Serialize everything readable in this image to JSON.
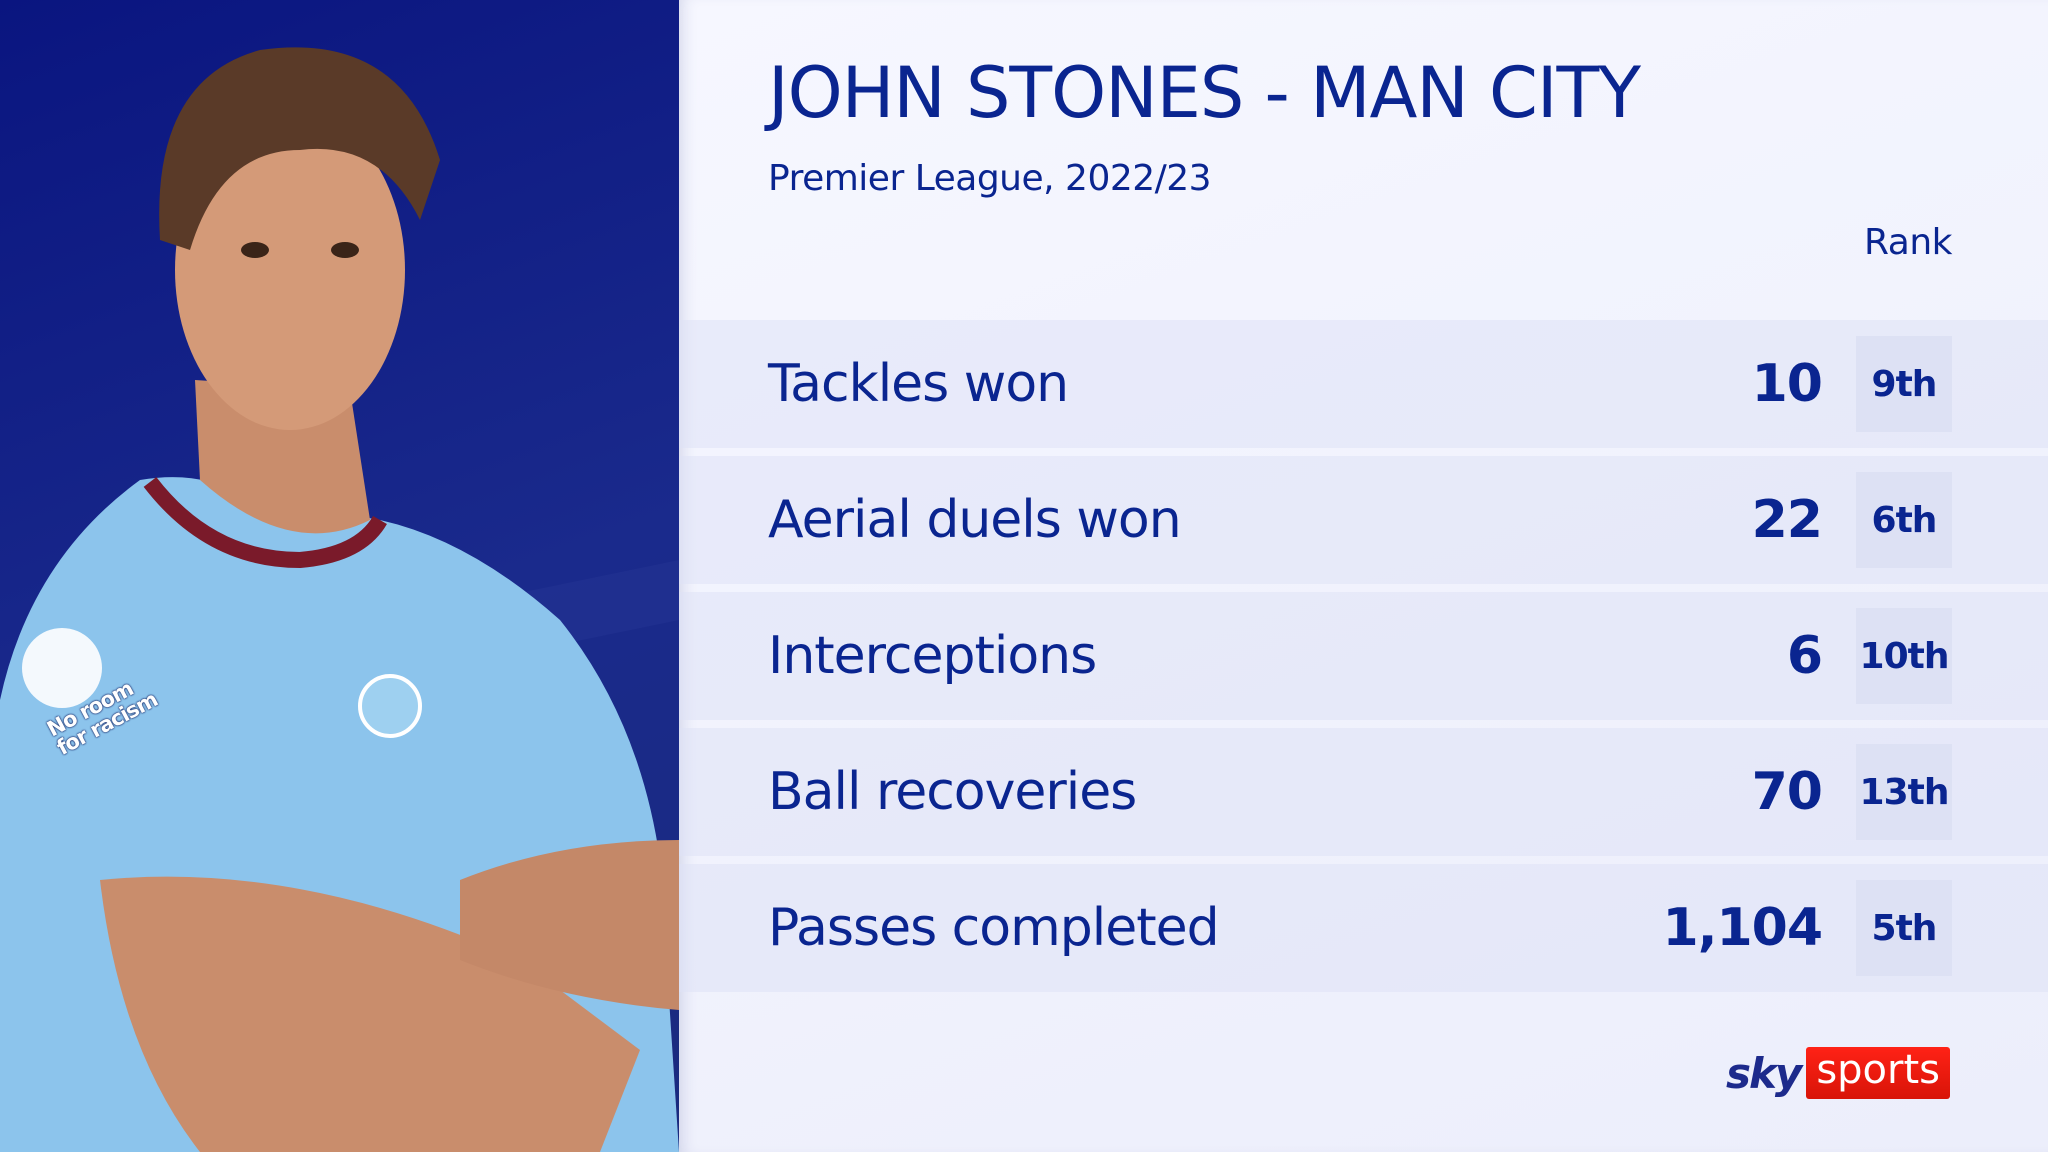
{
  "header": {
    "title": "JOHN STONES - MAN CITY",
    "subtitle": "Premier League, 2022/23",
    "rank_label": "Rank"
  },
  "stats": [
    {
      "label": "Tackles won",
      "value": "10",
      "rank": "9th"
    },
    {
      "label": "Aerial duels won",
      "value": "22",
      "rank": "6th"
    },
    {
      "label": "Interceptions",
      "value": "6",
      "rank": "10th"
    },
    {
      "label": "Ball recoveries",
      "value": "70",
      "rank": "13th"
    },
    {
      "label": "Passes completed",
      "value": "1,104",
      "rank": "5th"
    }
  ],
  "logo": {
    "sky": "sky",
    "sports": "sports"
  },
  "photo": {
    "shirt_text": "No room for racism"
  },
  "colors": {
    "text": "#0a2590",
    "background": "#f3f4fd",
    "photo_bg": "#0a1580",
    "rank_box": "#dde1f4",
    "logo_red": "#e8190c"
  }
}
